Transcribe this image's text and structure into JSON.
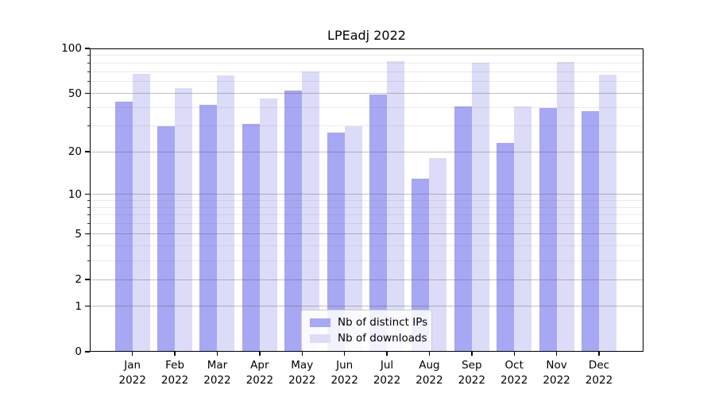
{
  "title": "LPEadj 2022",
  "colors": {
    "distinct_ips": "#a7a7f3",
    "downloads": "#dcdcf8",
    "axis": "#000000",
    "grid_major": "#c0c0c3",
    "grid_minor": "#ebebec",
    "background": "#ffffff"
  },
  "legend": {
    "items": [
      {
        "label": "Nb of distinct IPs",
        "series_index": 0
      },
      {
        "label": "Nb of downloads",
        "series_index": 1
      }
    ]
  },
  "chart_data": {
    "type": "bar",
    "title": "LPEadj 2022",
    "categories": [
      "Jan",
      "Feb",
      "Mar",
      "Apr",
      "May",
      "Jun",
      "Jul",
      "Aug",
      "Sep",
      "Oct",
      "Nov",
      "Dec"
    ],
    "category_year": "2022",
    "series": [
      {
        "name": "Nb of distinct IPs",
        "color": "#a7a7f3",
        "values": [
          44,
          30,
          42,
          31,
          52,
          27,
          49,
          13,
          41,
          23,
          40,
          38
        ]
      },
      {
        "name": "Nb of downloads",
        "color": "#dcdcf8",
        "values": [
          68,
          54,
          66,
          46,
          70,
          30,
          82,
          18,
          80,
          41,
          81,
          67
        ]
      }
    ],
    "xlabel": "",
    "ylabel": "",
    "yticks": [
      0,
      1,
      2,
      5,
      10,
      20,
      50,
      100
    ],
    "minor_yticks": [
      3,
      4,
      6,
      7,
      8,
      9,
      30,
      40,
      60,
      70,
      80,
      90
    ],
    "ylim": [
      0,
      100
    ],
    "yscale": "log1p",
    "grid": true,
    "legend_position": "lower center"
  }
}
